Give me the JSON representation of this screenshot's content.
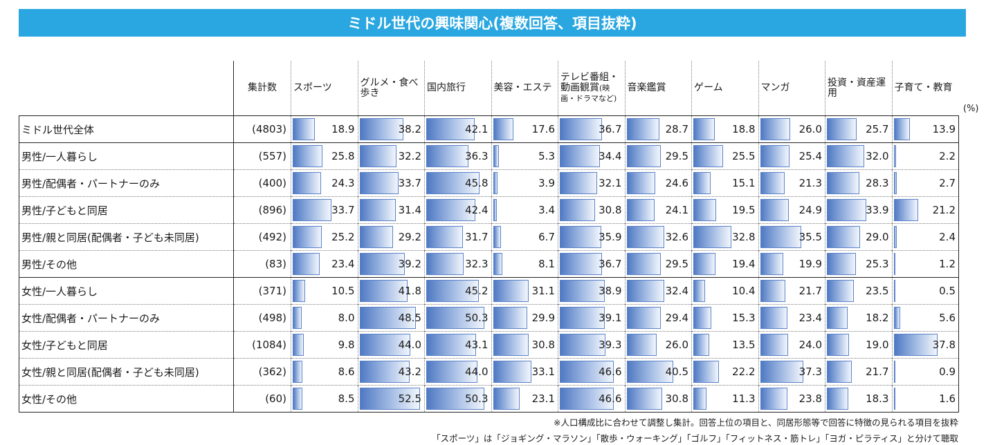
{
  "title": "ミドル世代の興味関心(複数回答、項目抜粋)",
  "unit": "(%)",
  "notes": [
    "※人口構成比に合わせて調整し集計。回答上位の項目と、同居形態等で回答に特徴の見られる項目を抜粋",
    "「スポーツ」は「ジョギング・マラソン」「散歩・ウォーキング」「ゴルフ」「フィットネス・筋トレ」「ヨガ・ピラティス」と分けて聴取"
  ],
  "chart_data": {
    "type": "table",
    "count_header": "集計数",
    "columns": [
      {
        "label": "スポーツ"
      },
      {
        "label": "グルメ・食べ歩き"
      },
      {
        "label": "国内旅行"
      },
      {
        "label": "美容・エステ"
      },
      {
        "label": "テレビ番組・動画観賞",
        "sub": "(映画・ドラマなど)"
      },
      {
        "label": "音楽鑑賞"
      },
      {
        "label": "ゲーム"
      },
      {
        "label": "マンガ"
      },
      {
        "label": "投資・資産運用"
      },
      {
        "label": "子育て・教育"
      }
    ],
    "rows": [
      {
        "label": "ミドル世代全体",
        "count": "(4803)",
        "values": [
          18.9,
          38.2,
          42.1,
          17.6,
          36.7,
          28.7,
          18.8,
          26.0,
          25.7,
          13.9
        ]
      },
      {
        "label": "男性/一人暮らし",
        "count": "(557)",
        "values": [
          25.8,
          32.2,
          36.3,
          5.3,
          34.4,
          29.5,
          25.5,
          25.4,
          32.0,
          2.2
        ]
      },
      {
        "label": "男性/配偶者・パートナーのみ",
        "count": "(400)",
        "values": [
          24.3,
          33.7,
          45.8,
          3.9,
          32.1,
          24.6,
          15.1,
          21.3,
          28.3,
          2.7
        ]
      },
      {
        "label": "男性/子どもと同居",
        "count": "(896)",
        "values": [
          33.7,
          31.4,
          42.4,
          3.4,
          30.8,
          24.1,
          19.5,
          24.9,
          33.9,
          21.2
        ]
      },
      {
        "label": "男性/親と同居(配偶者・子ども未同居)",
        "count": "(492)",
        "values": [
          25.2,
          29.2,
          31.7,
          6.7,
          35.9,
          32.6,
          32.8,
          35.5,
          29.0,
          2.4
        ]
      },
      {
        "label": "男性/その他",
        "count": "(83)",
        "values": [
          23.4,
          39.2,
          32.3,
          8.1,
          36.7,
          29.5,
          19.4,
          19.9,
          25.3,
          1.2
        ]
      },
      {
        "label": "女性/一人暮らし",
        "count": "(371)",
        "values": [
          10.5,
          41.8,
          45.2,
          31.1,
          38.9,
          32.4,
          10.4,
          21.7,
          23.5,
          0.5
        ]
      },
      {
        "label": "女性/配偶者・パートナーのみ",
        "count": "(498)",
        "values": [
          8.0,
          48.5,
          50.3,
          29.9,
          39.1,
          29.4,
          15.3,
          23.4,
          18.2,
          5.6
        ]
      },
      {
        "label": "女性/子どもと同居",
        "count": "(1084)",
        "values": [
          9.8,
          44.0,
          43.1,
          30.8,
          39.3,
          26.0,
          13.5,
          24.0,
          19.0,
          37.8
        ]
      },
      {
        "label": "女性/親と同居(配偶者・子ども未同居)",
        "count": "(362)",
        "values": [
          8.6,
          43.2,
          44.0,
          33.1,
          46.6,
          40.5,
          22.2,
          37.3,
          21.7,
          0.9
        ]
      },
      {
        "label": "女性/その他",
        "count": "(60)",
        "values": [
          8.5,
          52.5,
          50.3,
          23.1,
          46.6,
          30.8,
          11.3,
          23.8,
          18.3,
          1.6
        ]
      }
    ],
    "bar_scale_max": 100,
    "bar_color": "#5a82c8",
    "title_color": "#2aa7e0"
  }
}
